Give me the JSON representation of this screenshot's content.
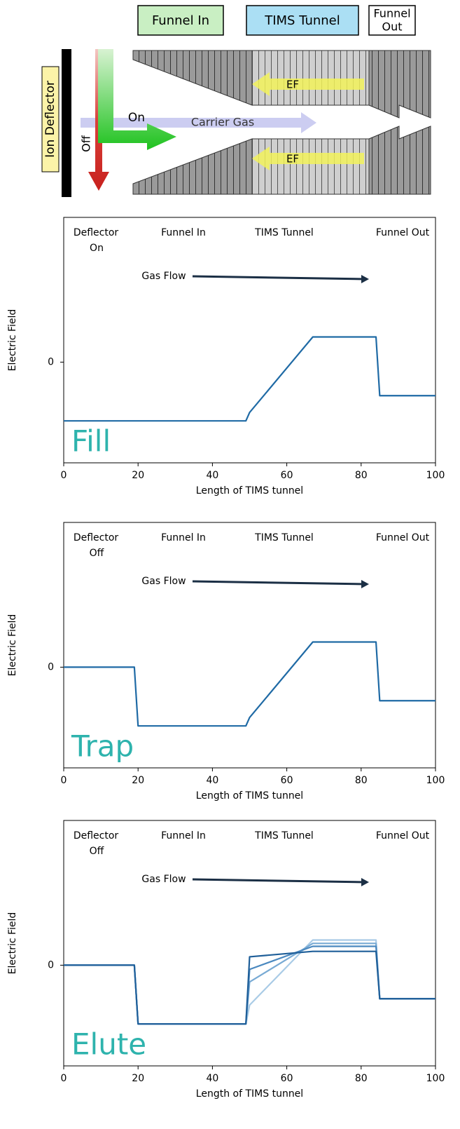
{
  "diagram": {
    "funnel_in": "Funnel In",
    "tims_tunnel": "TIMS Tunnel",
    "funnel_out": [
      "Funnel",
      "Out"
    ],
    "ion_deflector": "Ion Deflector",
    "on": "On",
    "off": "Off",
    "carrier_gas": "Carrier Gas",
    "ef_top": "EF",
    "ef_bottom": "EF"
  },
  "chart_data": [
    {
      "type": "line",
      "ylabel": "Electric Field",
      "xlabel": "Length of TIMS tunnel",
      "labels": [
        "Deflector",
        "On",
        "Funnel In",
        "TIMS Tunnel",
        "Funnel Out",
        "Gas Flow"
      ],
      "panel_label": "Fill",
      "xlim": [
        0,
        100
      ],
      "xticks": [
        0,
        20,
        40,
        60,
        80,
        100
      ],
      "ylim": [
        -2.4,
        3.45
      ],
      "yticks": [
        0
      ],
      "x": [
        0,
        49,
        50,
        67,
        84,
        85,
        100
      ],
      "series": [
        {
          "color": "#1f6aa5",
          "values": [
            -1.4,
            -1.4,
            -1.2,
            0.6,
            0.6,
            -0.8,
            -0.8
          ]
        }
      ]
    },
    {
      "type": "line",
      "ylabel": "Electric Field",
      "xlabel": "Length of TIMS tunnel",
      "labels": [
        "Deflector",
        "Off",
        "Funnel In",
        "TIMS Tunnel",
        "Funnel Out",
        "Gas Flow"
      ],
      "panel_label": "Trap",
      "xlim": [
        0,
        100
      ],
      "xticks": [
        0,
        20,
        40,
        60,
        80,
        100
      ],
      "ylim": [
        -2.4,
        3.45
      ],
      "yticks": [
        0
      ],
      "x": [
        0,
        19,
        20,
        49,
        50,
        67,
        84,
        85,
        100
      ],
      "series": [
        {
          "color": "#1f6aa5",
          "values": [
            0,
            0,
            -1.4,
            -1.4,
            -1.2,
            0.6,
            0.6,
            -0.8,
            -0.8
          ]
        }
      ]
    },
    {
      "type": "line",
      "ylabel": "Electric Field",
      "xlabel": "Length of TIMS tunnel",
      "labels": [
        "Deflector",
        "Off",
        "Funnel In",
        "TIMS Tunnel",
        "Funnel Out",
        "Gas Flow"
      ],
      "panel_label": "Elute",
      "xlim": [
        0,
        100
      ],
      "xticks": [
        0,
        20,
        40,
        60,
        80,
        100
      ],
      "ylim": [
        -2.4,
        3.45
      ],
      "yticks": [
        0
      ],
      "x": [
        0,
        19,
        20,
        49,
        50,
        67,
        84,
        85,
        100
      ],
      "series": [
        {
          "color": "#a9cbe6",
          "values": [
            0,
            0,
            -1.4,
            -1.4,
            -0.95,
            0.6,
            0.6,
            -0.8,
            -0.8
          ]
        },
        {
          "color": "#78aad4",
          "values": [
            0,
            0,
            -1.4,
            -1.4,
            -0.4,
            0.52,
            0.52,
            -0.8,
            -0.8
          ]
        },
        {
          "color": "#4a88bf",
          "values": [
            0,
            0,
            -1.4,
            -1.4,
            -0.1,
            0.45,
            0.45,
            -0.8,
            -0.8
          ]
        },
        {
          "color": "#1f5f99",
          "values": [
            0,
            0,
            -1.4,
            -1.4,
            0.2,
            0.33,
            0.33,
            -0.8,
            -0.8
          ]
        }
      ]
    }
  ]
}
